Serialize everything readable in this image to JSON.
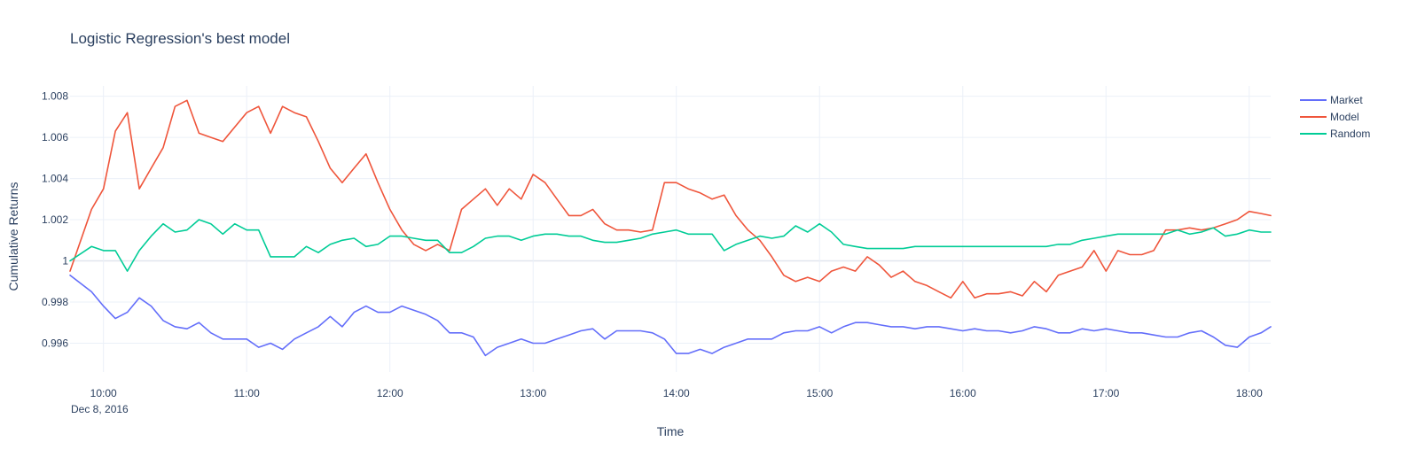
{
  "chart_data": {
    "type": "line",
    "title": "Logistic Regression's best model",
    "xlabel": "Time",
    "ylabel": "Cumulative Returns",
    "x_date_label": "Dec 8, 2016",
    "xlim": [
      "2016-12-08 09:46",
      "2016-12-08 18:09"
    ],
    "ylim": [
      0.9946,
      1.0085
    ],
    "x_ticks": [
      "10:00",
      "11:00",
      "12:00",
      "13:00",
      "14:00",
      "15:00",
      "16:00",
      "17:00",
      "18:00"
    ],
    "y_ticks": [
      0.996,
      0.998,
      1,
      1.002,
      1.004,
      1.006,
      1.008
    ],
    "y_tick_labels": [
      "0.996",
      "0.998",
      "1",
      "1.002",
      "1.004",
      "1.006",
      "1.008"
    ],
    "grid": true,
    "legend_position": "top-right",
    "x": [
      "2016-12-08 09:46",
      "2016-12-08 09:55",
      "2016-12-08 10:00",
      "2016-12-08 10:05",
      "2016-12-08 10:10",
      "2016-12-08 10:15",
      "2016-12-08 10:20",
      "2016-12-08 10:25",
      "2016-12-08 10:30",
      "2016-12-08 10:35",
      "2016-12-08 10:40",
      "2016-12-08 10:45",
      "2016-12-08 10:50",
      "2016-12-08 10:55",
      "2016-12-08 11:00",
      "2016-12-08 11:05",
      "2016-12-08 11:10",
      "2016-12-08 11:15",
      "2016-12-08 11:20",
      "2016-12-08 11:25",
      "2016-12-08 11:30",
      "2016-12-08 11:35",
      "2016-12-08 11:40",
      "2016-12-08 11:45",
      "2016-12-08 11:50",
      "2016-12-08 11:55",
      "2016-12-08 12:00",
      "2016-12-08 12:05",
      "2016-12-08 12:10",
      "2016-12-08 12:15",
      "2016-12-08 12:20",
      "2016-12-08 12:25",
      "2016-12-08 12:30",
      "2016-12-08 12:35",
      "2016-12-08 12:40",
      "2016-12-08 12:45",
      "2016-12-08 12:50",
      "2016-12-08 12:55",
      "2016-12-08 13:00",
      "2016-12-08 13:05",
      "2016-12-08 13:10",
      "2016-12-08 13:15",
      "2016-12-08 13:20",
      "2016-12-08 13:25",
      "2016-12-08 13:30",
      "2016-12-08 13:35",
      "2016-12-08 13:40",
      "2016-12-08 13:45",
      "2016-12-08 13:50",
      "2016-12-08 13:55",
      "2016-12-08 14:00",
      "2016-12-08 14:05",
      "2016-12-08 14:10",
      "2016-12-08 14:15",
      "2016-12-08 14:20",
      "2016-12-08 14:25",
      "2016-12-08 14:30",
      "2016-12-08 14:35",
      "2016-12-08 14:40",
      "2016-12-08 14:45",
      "2016-12-08 14:50",
      "2016-12-08 14:55",
      "2016-12-08 15:00",
      "2016-12-08 15:05",
      "2016-12-08 15:10",
      "2016-12-08 15:15",
      "2016-12-08 15:20",
      "2016-12-08 15:25",
      "2016-12-08 15:30",
      "2016-12-08 15:35",
      "2016-12-08 15:40",
      "2016-12-08 15:45",
      "2016-12-08 15:50",
      "2016-12-08 15:55",
      "2016-12-08 16:00",
      "2016-12-08 16:05",
      "2016-12-08 16:10",
      "2016-12-08 16:15",
      "2016-12-08 16:20",
      "2016-12-08 16:25",
      "2016-12-08 16:30",
      "2016-12-08 16:35",
      "2016-12-08 16:40",
      "2016-12-08 16:45",
      "2016-12-08 16:50",
      "2016-12-08 16:55",
      "2016-12-08 17:00",
      "2016-12-08 17:05",
      "2016-12-08 17:10",
      "2016-12-08 17:15",
      "2016-12-08 17:20",
      "2016-12-08 17:25",
      "2016-12-08 17:30",
      "2016-12-08 17:35",
      "2016-12-08 17:40",
      "2016-12-08 17:45",
      "2016-12-08 17:50",
      "2016-12-08 17:55",
      "2016-12-08 18:00",
      "2016-12-08 18:05",
      "2016-12-08 18:09"
    ],
    "series": [
      {
        "name": "Market",
        "color": "#636efa",
        "values": [
          0.9993,
          0.9985,
          0.9978,
          0.9972,
          0.9975,
          0.9982,
          0.9978,
          0.9971,
          0.9968,
          0.9967,
          0.997,
          0.9965,
          0.9962,
          0.9962,
          0.9962,
          0.9958,
          0.996,
          0.9957,
          0.9962,
          0.9965,
          0.9968,
          0.9973,
          0.9968,
          0.9975,
          0.9978,
          0.9975,
          0.9975,
          0.9978,
          0.9976,
          0.9974,
          0.9971,
          0.9965,
          0.9965,
          0.9963,
          0.9954,
          0.9958,
          0.996,
          0.9962,
          0.996,
          0.996,
          0.9962,
          0.9964,
          0.9966,
          0.9967,
          0.9962,
          0.9966,
          0.9966,
          0.9966,
          0.9965,
          0.9962,
          0.9955,
          0.9955,
          0.9957,
          0.9955,
          0.9958,
          0.996,
          0.9962,
          0.9962,
          0.9962,
          0.9965,
          0.9966,
          0.9966,
          0.9968,
          0.9965,
          0.9968,
          0.997,
          0.997,
          0.9969,
          0.9968,
          0.9968,
          0.9967,
          0.9968,
          0.9968,
          0.9967,
          0.9966,
          0.9967,
          0.9966,
          0.9966,
          0.9965,
          0.9966,
          0.9968,
          0.9967,
          0.9965,
          0.9965,
          0.9967,
          0.9966,
          0.9967,
          0.9966,
          0.9965,
          0.9965,
          0.9964,
          0.9963,
          0.9963,
          0.9965,
          0.9966,
          0.9963,
          0.9959,
          0.9958,
          0.9963,
          0.9965,
          0.9968
        ]
      },
      {
        "name": "Model",
        "color": "#ef553b",
        "values": [
          0.9995,
          1.0025,
          1.0035,
          1.0063,
          1.0072,
          1.0035,
          1.0045,
          1.0055,
          1.0075,
          1.0078,
          1.0062,
          1.006,
          1.0058,
          1.0065,
          1.0072,
          1.0075,
          1.0062,
          1.0075,
          1.0072,
          1.007,
          1.0058,
          1.0045,
          1.0038,
          1.0045,
          1.0052,
          1.0038,
          1.0025,
          1.0015,
          1.0008,
          1.0005,
          1.0008,
          1.0005,
          1.0025,
          1.003,
          1.0035,
          1.0027,
          1.0035,
          1.003,
          1.0042,
          1.0038,
          1.003,
          1.0022,
          1.0022,
          1.0025,
          1.0018,
          1.0015,
          1.0015,
          1.0014,
          1.0015,
          1.0038,
          1.0038,
          1.0035,
          1.0033,
          1.003,
          1.0032,
          1.0022,
          1.0015,
          1.001,
          1.0002,
          0.9993,
          0.999,
          0.9992,
          0.999,
          0.9995,
          0.9997,
          0.9995,
          1.0002,
          0.9998,
          0.9992,
          0.9995,
          0.999,
          0.9988,
          0.9985,
          0.9982,
          0.999,
          0.9982,
          0.9984,
          0.9984,
          0.9985,
          0.9983,
          0.999,
          0.9985,
          0.9993,
          0.9995,
          0.9997,
          1.0005,
          0.9995,
          1.0005,
          1.0003,
          1.0003,
          1.0005,
          1.0015,
          1.0015,
          1.0016,
          1.0015,
          1.0016,
          1.0018,
          1.002,
          1.0024,
          1.0023,
          1.0022
        ]
      },
      {
        "name": "Random",
        "color": "#00cc96",
        "values": [
          1.0,
          1.0007,
          1.0005,
          1.0005,
          0.9995,
          1.0005,
          1.0012,
          1.0018,
          1.0014,
          1.0015,
          1.002,
          1.0018,
          1.0013,
          1.0018,
          1.0015,
          1.0015,
          1.0002,
          1.0002,
          1.0002,
          1.0007,
          1.0004,
          1.0008,
          1.001,
          1.0011,
          1.0007,
          1.0008,
          1.0012,
          1.0012,
          1.0011,
          1.001,
          1.001,
          1.0004,
          1.0004,
          1.0007,
          1.0011,
          1.0012,
          1.0012,
          1.001,
          1.0012,
          1.0013,
          1.0013,
          1.0012,
          1.0012,
          1.001,
          1.0009,
          1.0009,
          1.001,
          1.0011,
          1.0013,
          1.0014,
          1.0015,
          1.0013,
          1.0013,
          1.0013,
          1.0005,
          1.0008,
          1.001,
          1.0012,
          1.0011,
          1.0012,
          1.0017,
          1.0014,
          1.0018,
          1.0014,
          1.0008,
          1.0007,
          1.0006,
          1.0006,
          1.0006,
          1.0006,
          1.0007,
          1.0007,
          1.0007,
          1.0007,
          1.0007,
          1.0007,
          1.0007,
          1.0007,
          1.0007,
          1.0007,
          1.0007,
          1.0007,
          1.0008,
          1.0008,
          1.001,
          1.0011,
          1.0012,
          1.0013,
          1.0013,
          1.0013,
          1.0013,
          1.0013,
          1.0015,
          1.0013,
          1.0014,
          1.0016,
          1.0012,
          1.0013,
          1.0015,
          1.0014,
          1.0014
        ]
      }
    ]
  }
}
